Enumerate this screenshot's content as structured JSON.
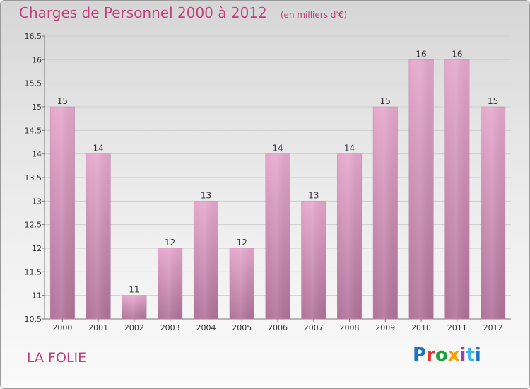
{
  "header": {
    "title": "Charges de Personnel 2000 à 2012",
    "subtitle": "(en milliers d'€)"
  },
  "footer": {
    "town": "LA FOLIE",
    "logo": [
      "P",
      "r",
      "o",
      "x",
      "i",
      "t",
      "i"
    ]
  },
  "colors": {
    "accent": "#c4407c",
    "bar_top": "#e6a8cd",
    "bar_bottom": "#b07299"
  },
  "chart_data": {
    "type": "bar",
    "categories": [
      "2000",
      "2001",
      "2002",
      "2003",
      "2004",
      "2005",
      "2006",
      "2007",
      "2008",
      "2009",
      "2010",
      "2011",
      "2012"
    ],
    "values": [
      15,
      14,
      11,
      12,
      13,
      12,
      14,
      13,
      14,
      15,
      16,
      16,
      15
    ],
    "data_labels": [
      "15",
      "14",
      "11",
      "12",
      "13",
      "12",
      "14",
      "13",
      "14",
      "15",
      "16",
      "16",
      "15"
    ],
    "ylim": [
      10.5,
      16.5
    ],
    "yticks": [
      10.5,
      11,
      11.5,
      12,
      12.5,
      13,
      13.5,
      14,
      14.5,
      15,
      15.5,
      16,
      16.5
    ],
    "ytick_labels": [
      "10.5",
      "11",
      "11.5",
      "12",
      "12.5",
      "13",
      "13.5",
      "14",
      "14.5",
      "15",
      "15.5",
      "16",
      "16.5"
    ],
    "grid": true
  }
}
